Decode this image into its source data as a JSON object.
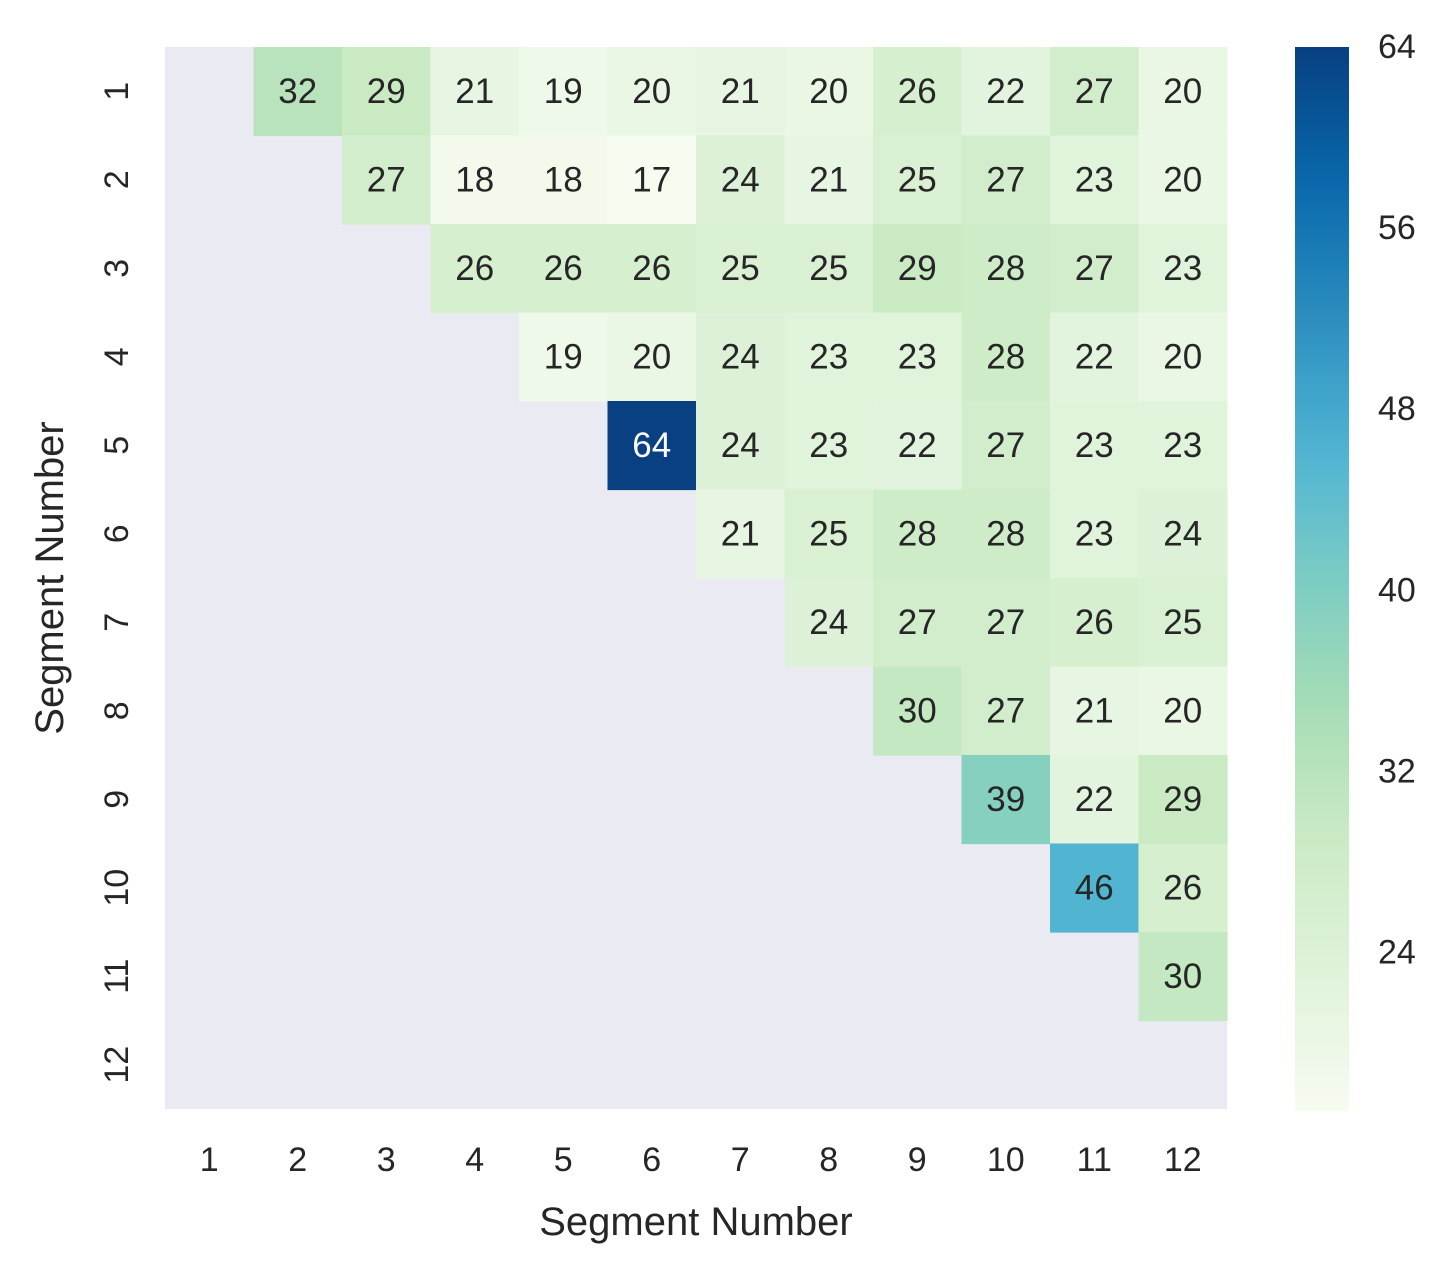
{
  "chart_data": {
    "type": "heatmap",
    "title": "",
    "xlabel": "Segment Number",
    "ylabel": "Segment Number",
    "x_categories": [
      "1",
      "2",
      "3",
      "4",
      "5",
      "6",
      "7",
      "8",
      "9",
      "10",
      "11",
      "12"
    ],
    "y_categories": [
      "1",
      "2",
      "3",
      "4",
      "5",
      "6",
      "7",
      "8",
      "9",
      "10",
      "11",
      "12"
    ],
    "mask": "lower triangle including diagonal",
    "values": [
      [
        null,
        32,
        29,
        21,
        19,
        20,
        21,
        20,
        26,
        22,
        27,
        20
      ],
      [
        null,
        null,
        27,
        18,
        18,
        17,
        24,
        21,
        25,
        27,
        23,
        20
      ],
      [
        null,
        null,
        null,
        26,
        26,
        26,
        25,
        25,
        29,
        28,
        27,
        23
      ],
      [
        null,
        null,
        null,
        null,
        19,
        20,
        24,
        23,
        23,
        28,
        22,
        20
      ],
      [
        null,
        null,
        null,
        null,
        null,
        64,
        24,
        23,
        22,
        27,
        23,
        23
      ],
      [
        null,
        null,
        null,
        null,
        null,
        null,
        21,
        25,
        28,
        28,
        23,
        24
      ],
      [
        null,
        null,
        null,
        null,
        null,
        null,
        null,
        24,
        27,
        27,
        26,
        25
      ],
      [
        null,
        null,
        null,
        null,
        null,
        null,
        null,
        null,
        30,
        27,
        21,
        20
      ],
      [
        null,
        null,
        null,
        null,
        null,
        null,
        null,
        null,
        null,
        39,
        22,
        29
      ],
      [
        null,
        null,
        null,
        null,
        null,
        null,
        null,
        null,
        null,
        null,
        46,
        26
      ],
      [
        null,
        null,
        null,
        null,
        null,
        null,
        null,
        null,
        null,
        null,
        null,
        30
      ],
      [
        null,
        null,
        null,
        null,
        null,
        null,
        null,
        null,
        null,
        null,
        null,
        null
      ]
    ],
    "colorbar": {
      "vmin": 17,
      "vmax": 64,
      "ticks": [
        24,
        32,
        40,
        48,
        56,
        64
      ],
      "colormap": "GnBu"
    },
    "background_color": "#eaeaf2",
    "annotation_dark_color": "#262626",
    "annotation_light_color": "#ffffff"
  }
}
